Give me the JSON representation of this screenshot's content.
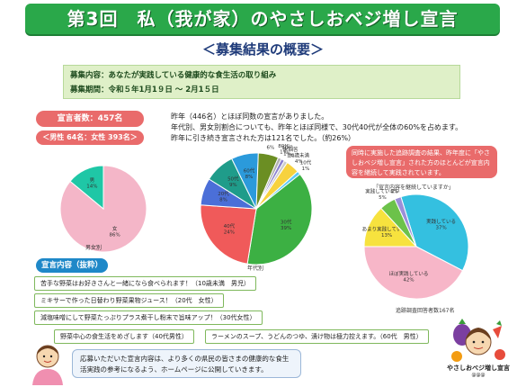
{
  "header": {
    "title": "第3回　私（我が家）のやさしおベジ増し宣言",
    "subtitle": "＜募集結果の概要＞"
  },
  "info": {
    "content": "募集内容：あなたが実践している健康的な食生活の取り組み",
    "period": "募集期間：令和５年1月1９日 ～ 2月1５日"
  },
  "stats": {
    "total": "宣言者数：457名",
    "gender": "＜男性 64名：女性 393名＞"
  },
  "notes": [
    "昨年（446名）とほぼ同数の宣言がありました。",
    "年代別、男女別割合についても、昨年とほぼ同様で、30代40代が全体の60%を占めます。",
    "昨年に引き続き宣言された方は121名でした。（約26%）"
  ],
  "callout": {
    "text": "同時に実施した追跡調査の結果、昨年度に「やさしおベジ増し宣言」された方のほとんどが宣言内容を継続して実践されています。"
  },
  "charts": {
    "gender_caption": "男女別",
    "age_caption": "年代別",
    "continue_title": "「宣言内容を継続していますか」",
    "continue_caption": "追跡調査回答者数167名"
  },
  "chart_data": [
    {
      "type": "pie",
      "labels": [
        "女",
        "男"
      ],
      "values": [
        86,
        14
      ],
      "colors": [
        "#f4b6c8",
        "#1fc7a6"
      ]
    },
    {
      "type": "pie",
      "labels": [
        "30代",
        "40代",
        "20代",
        "50代",
        "60代",
        "70代",
        "80代",
        "90代",
        "未回答",
        "10歳未満",
        "10代"
      ],
      "values": [
        39,
        24,
        8,
        9,
        8,
        6,
        1,
        1,
        1,
        4,
        1
      ],
      "value_labels": [
        "30代\n39%",
        "40代\n24%",
        "20代\n8%",
        "50代\n9%",
        "60代\n8%",
        "70代\n6%",
        "80代\n1%",
        "90代\n1%",
        "未回答\n1%",
        "10歳未満\n4%",
        "10代\n1%"
      ],
      "colors": [
        "#3cb043",
        "#f05a5a",
        "#4b6fd8",
        "#1f9c8a",
        "#2b9adb",
        "#6b8e23",
        "#b0b0b0",
        "#8a7fd0",
        "#cccccc",
        "#f7d23e",
        "#5ac8fa"
      ]
    },
    {
      "type": "pie",
      "labels": [
        "実践している",
        "ほぼ実践している",
        "あまり実践していない",
        "実践していない",
        "未回答"
      ],
      "values": [
        37,
        42,
        13,
        5,
        2
      ],
      "value_labels": [
        "実践している\n37%",
        "ほぼ実践している\n42%",
        "あまり実践していない\n13%",
        "実践していない\n5%",
        "未回答\n2%"
      ],
      "colors": [
        "#34c0e0",
        "#f7b6c8",
        "#f7e23e",
        "#6cc24a",
        "#9b8fd8"
      ]
    }
  ],
  "declarations": {
    "label": "宣言内容（抜粋）",
    "items": [
      "苦手な野菜はお好きさんと一緒になら食べられます！（10歳未満　男児）",
      "ミキサーで作った日替わり野菜果物ジュース！（20代　女性）",
      "減塩味噌にして野菜たっぷりプラス煮干し粉末で旨味アップ！（30代女性）",
      "野菜中心の食生活をめざします（40代男性）",
      "ラーメンのスープ、うどんのつゆ、漬け物は極力控えます。（60代　男性）"
    ]
  },
  "footer": {
    "text": "応募いただいた宣言内容は、より多くの県民の皆さまの健康的な食生活実践の参考になるよう、ホームページに公開していきます。",
    "brand": "やさしおベジ増し宣言",
    "brand_sub": "@@@"
  }
}
